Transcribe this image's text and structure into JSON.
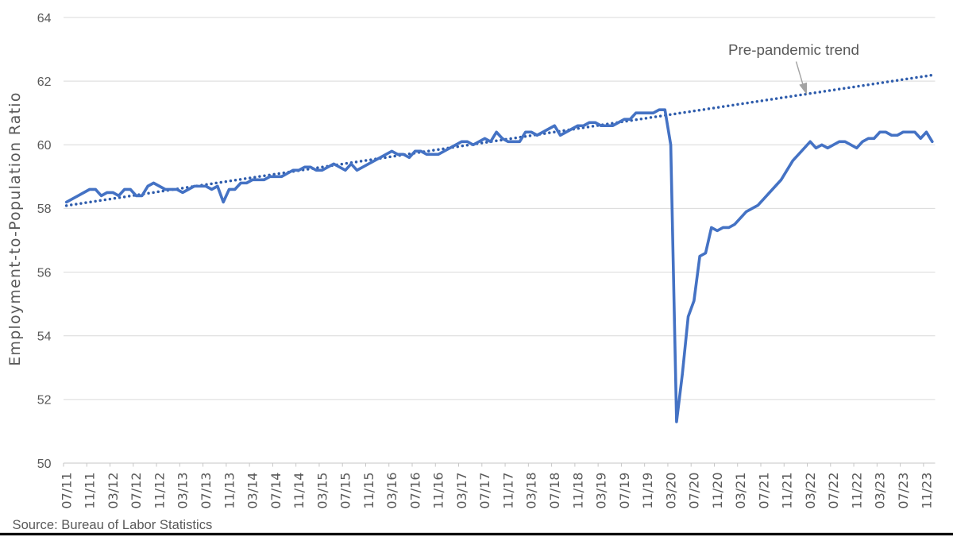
{
  "page": {
    "background": "#FFFFFF",
    "footer_bar_color": "#0A0A0A"
  },
  "source_note": "Source: Bureau of Labor Statistics",
  "axis_style": {
    "tick_label_color": "#595959",
    "title_color": "#595959",
    "gridline_color": "#D9D9D9",
    "axis_line_color": "#C6C6C6"
  },
  "chart_data": {
    "type": "line",
    "title": "",
    "xlabel": "",
    "ylabel": "Employment-to-Population Ratio",
    "ylim": [
      50,
      64
    ],
    "yticks": [
      50,
      52,
      54,
      56,
      58,
      60,
      62,
      64
    ],
    "grid": "horizontal",
    "legend": "none",
    "x_label_interval": 4,
    "x_tick_labels": [
      "07/11",
      "11/11",
      "03/12",
      "07/12",
      "11/12",
      "03/13",
      "07/13",
      "11/13",
      "03/14",
      "07/14",
      "11/14",
      "03/15",
      "07/15",
      "11/15",
      "03/16",
      "07/16",
      "11/16",
      "03/17",
      "07/17",
      "11/17",
      "03/18",
      "07/18",
      "11/18",
      "03/19",
      "07/19",
      "11/19",
      "03/20",
      "07/20",
      "11/20",
      "03/21",
      "07/21",
      "11/21",
      "03/22",
      "07/22",
      "11/22",
      "03/23",
      "07/23",
      "11/23"
    ],
    "x": [
      "07/11",
      "08/11",
      "09/11",
      "10/11",
      "11/11",
      "12/11",
      "01/12",
      "02/12",
      "03/12",
      "04/12",
      "05/12",
      "06/12",
      "07/12",
      "08/12",
      "09/12",
      "10/12",
      "11/12",
      "12/12",
      "01/13",
      "02/13",
      "03/13",
      "04/13",
      "05/13",
      "06/13",
      "07/13",
      "08/13",
      "09/13",
      "10/13",
      "11/13",
      "12/13",
      "01/14",
      "02/14",
      "03/14",
      "04/14",
      "05/14",
      "06/14",
      "07/14",
      "08/14",
      "09/14",
      "10/14",
      "11/14",
      "12/14",
      "01/15",
      "02/15",
      "03/15",
      "04/15",
      "05/15",
      "06/15",
      "07/15",
      "08/15",
      "09/15",
      "10/15",
      "11/15",
      "12/15",
      "01/16",
      "02/16",
      "03/16",
      "04/16",
      "05/16",
      "06/16",
      "07/16",
      "08/16",
      "09/16",
      "10/16",
      "11/16",
      "12/16",
      "01/17",
      "02/17",
      "03/17",
      "04/17",
      "05/17",
      "06/17",
      "07/17",
      "08/17",
      "09/17",
      "10/17",
      "11/17",
      "12/17",
      "01/18",
      "02/18",
      "03/18",
      "04/18",
      "05/18",
      "06/18",
      "07/18",
      "08/18",
      "09/18",
      "10/18",
      "11/18",
      "12/18",
      "01/19",
      "02/19",
      "03/19",
      "04/19",
      "05/19",
      "06/19",
      "07/19",
      "08/19",
      "09/19",
      "10/19",
      "11/19",
      "12/19",
      "01/20",
      "02/20",
      "03/20",
      "04/20",
      "05/20",
      "06/20",
      "07/20",
      "08/20",
      "09/20",
      "10/20",
      "11/20",
      "12/20",
      "01/21",
      "02/21",
      "03/21",
      "04/21",
      "05/21",
      "06/21",
      "07/21",
      "08/21",
      "09/21",
      "10/21",
      "11/21",
      "12/21",
      "01/22",
      "02/22",
      "03/22",
      "04/22",
      "05/22",
      "06/22",
      "07/22",
      "08/22",
      "09/22",
      "10/22",
      "11/22",
      "12/22",
      "01/23",
      "02/23",
      "03/23",
      "04/23",
      "05/23",
      "06/23",
      "07/23",
      "08/23",
      "09/23",
      "10/23",
      "11/23",
      "12/23"
    ],
    "series": [
      {
        "name": "Employment-to-Population Ratio",
        "style": "solid",
        "color": "#4472C4",
        "stroke_width": 3.6,
        "values": [
          58.2,
          58.3,
          58.4,
          58.5,
          58.6,
          58.6,
          58.4,
          58.5,
          58.5,
          58.4,
          58.6,
          58.6,
          58.4,
          58.4,
          58.7,
          58.8,
          58.7,
          58.6,
          58.6,
          58.6,
          58.5,
          58.6,
          58.7,
          58.7,
          58.7,
          58.6,
          58.7,
          58.2,
          58.6,
          58.6,
          58.8,
          58.8,
          58.9,
          58.9,
          58.9,
          59.0,
          59.0,
          59.0,
          59.1,
          59.2,
          59.2,
          59.3,
          59.3,
          59.2,
          59.2,
          59.3,
          59.4,
          59.3,
          59.2,
          59.4,
          59.2,
          59.3,
          59.4,
          59.5,
          59.6,
          59.7,
          59.8,
          59.7,
          59.7,
          59.6,
          59.8,
          59.8,
          59.7,
          59.7,
          59.7,
          59.8,
          59.9,
          60.0,
          60.1,
          60.1,
          60.0,
          60.1,
          60.2,
          60.1,
          60.4,
          60.2,
          60.1,
          60.1,
          60.1,
          60.4,
          60.4,
          60.3,
          60.4,
          60.5,
          60.6,
          60.3,
          60.4,
          60.5,
          60.6,
          60.6,
          60.7,
          60.7,
          60.6,
          60.6,
          60.6,
          60.7,
          60.8,
          60.8,
          61.0,
          61.0,
          61.0,
          61.0,
          61.1,
          61.1,
          60.0,
          51.3,
          52.8,
          54.6,
          55.1,
          56.5,
          56.6,
          57.4,
          57.3,
          57.4,
          57.4,
          57.5,
          57.7,
          57.9,
          58.0,
          58.1,
          58.3,
          58.5,
          58.7,
          58.9,
          59.2,
          59.5,
          59.7,
          59.9,
          60.1,
          59.9,
          60.0,
          59.9,
          60.0,
          60.1,
          60.1,
          60.0,
          59.9,
          60.1,
          60.2,
          60.2,
          60.4,
          60.4,
          60.3,
          60.3,
          60.4,
          60.4,
          60.4,
          60.2,
          60.4,
          60.1
        ]
      },
      {
        "name": "Pre-pandemic trend",
        "style": "dotted",
        "color": "#2E5CAC",
        "stroke_width": 3.5,
        "trend_start": 58.09,
        "trend_end": 62.19
      }
    ],
    "annotation": {
      "text": "Pre-pandemic trend",
      "text_color": "#595959",
      "arrow_color": "#A3A3A3"
    }
  }
}
